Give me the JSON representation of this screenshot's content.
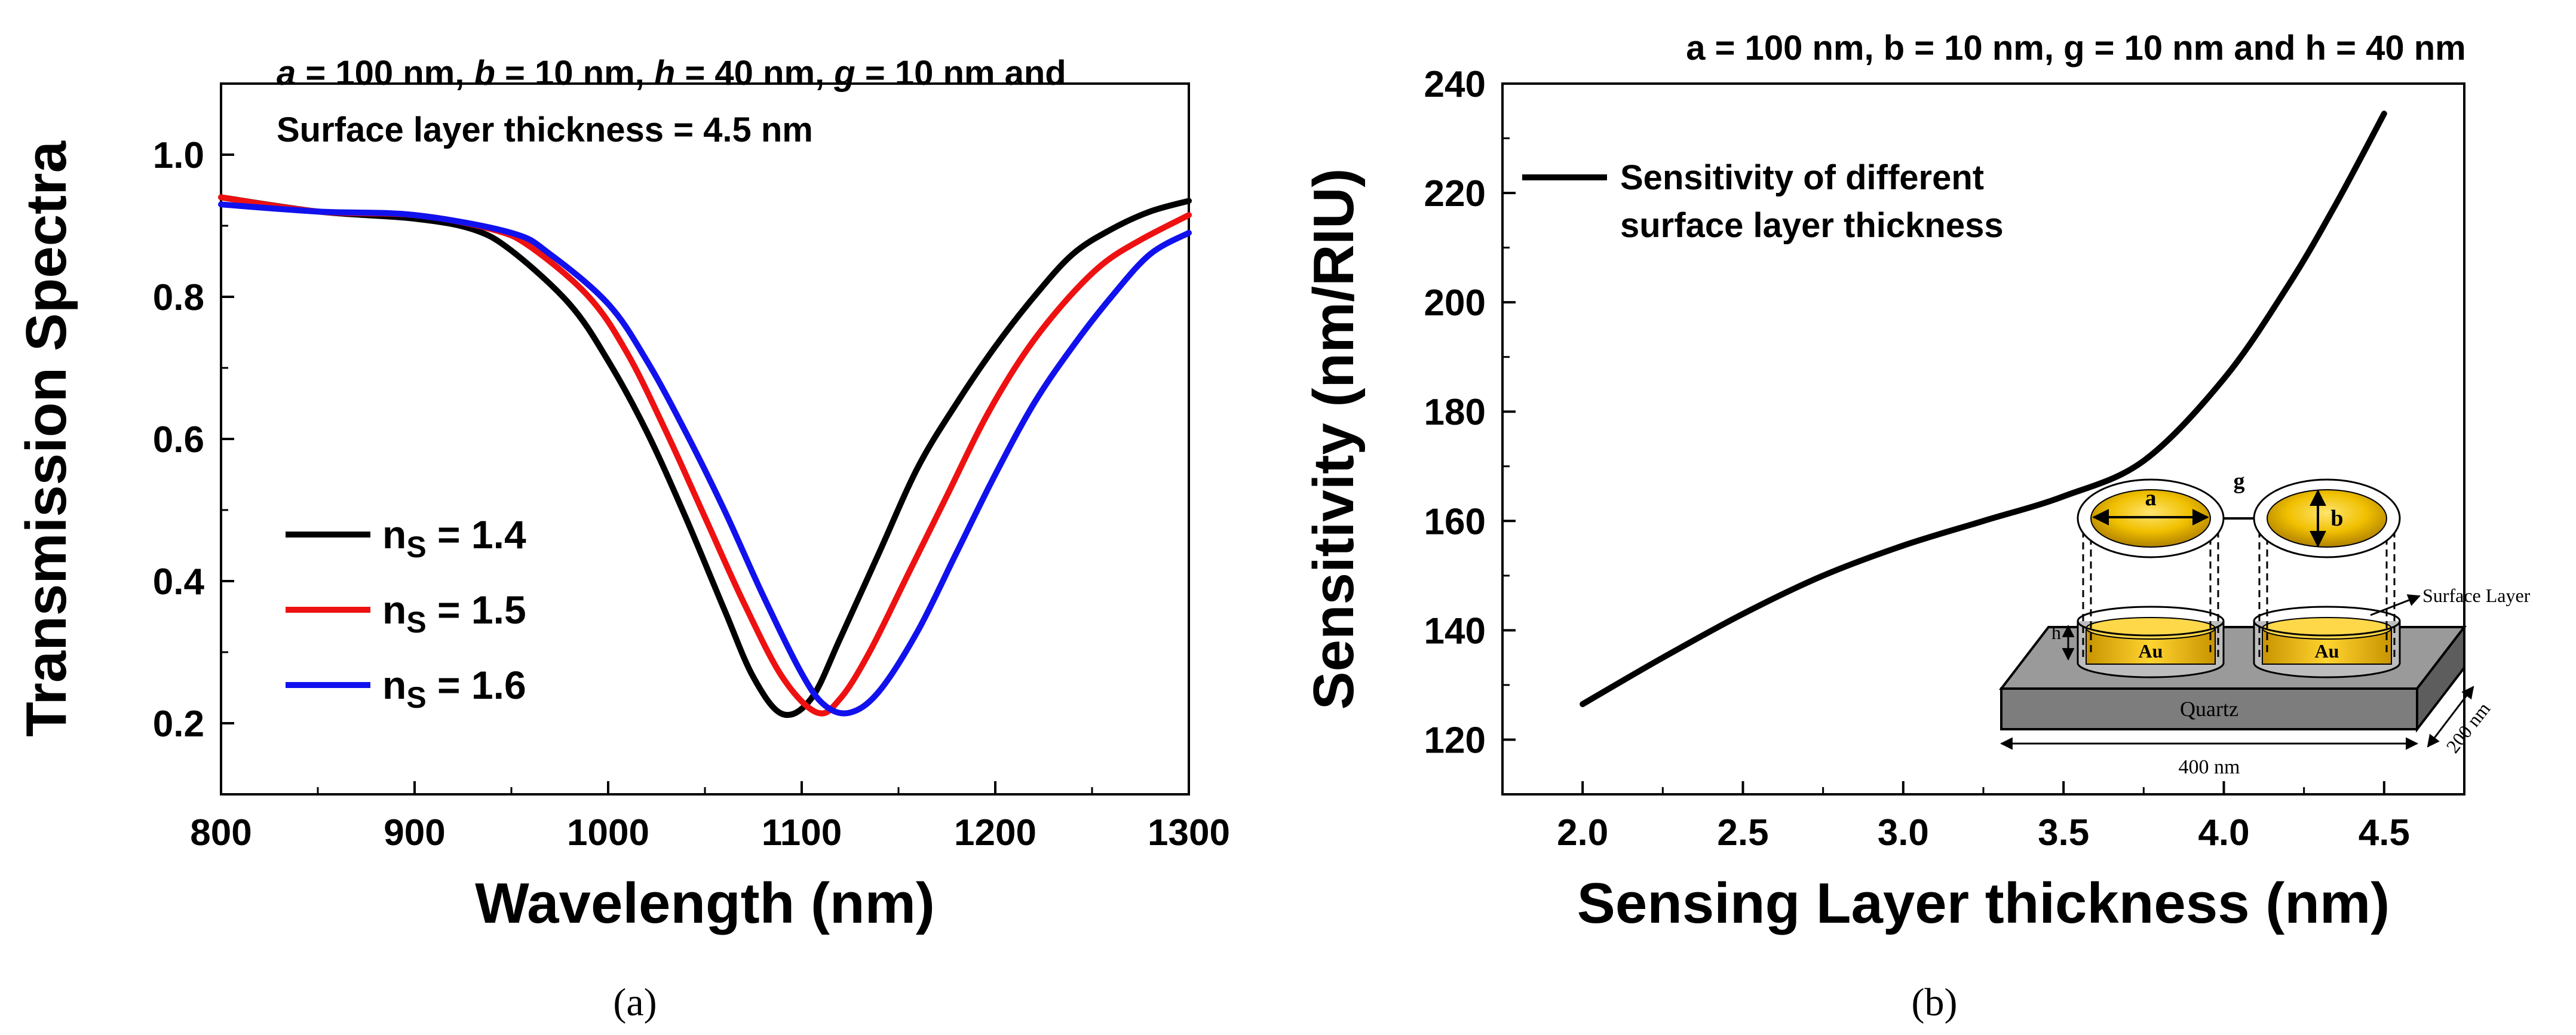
{
  "chart_data": [
    {
      "panel": "(a)",
      "type": "line",
      "xlabel": "Wavelength (nm)",
      "ylabel": "Transmission Spectra",
      "xlim": [
        800,
        1300
      ],
      "ylim": [
        0.1,
        1.1
      ],
      "xticks": [
        "800",
        "900",
        "1000",
        "1100",
        "1200",
        "1300"
      ],
      "yticks": [
        "0.2",
        "0.4",
        "0.6",
        "0.8",
        "1.0"
      ],
      "annotation": {
        "line1_parts": [
          {
            "t": "a",
            "i": true
          },
          {
            "t": " = 100 nm, ",
            "i": false
          },
          {
            "t": "b",
            "i": true
          },
          {
            "t": " = 10 nm, ",
            "i": false
          },
          {
            "t": "h",
            "i": true
          },
          {
            "t": " = 40 nm, ",
            "i": false
          },
          {
            "t": "g",
            "i": true
          },
          {
            "t": " = 10 nm and",
            "i": false
          }
        ],
        "line2": "Surface layer thickness = 4.5 nm"
      },
      "legend": {
        "position": "middle-left"
      },
      "series": [
        {
          "name": "n_S = 1.4",
          "label_main": "n",
          "label_sub": "S",
          "label_value": " = 1.4",
          "color": "#000000",
          "x": [
            800,
            850,
            900,
            930,
            950,
            980,
            1000,
            1020,
            1040,
            1060,
            1075,
            1090,
            1105,
            1120,
            1140,
            1160,
            1180,
            1200,
            1220,
            1240,
            1260,
            1280,
            1300
          ],
          "y": [
            0.94,
            0.92,
            0.91,
            0.895,
            0.865,
            0.79,
            0.71,
            0.61,
            0.49,
            0.36,
            0.265,
            0.213,
            0.235,
            0.32,
            0.44,
            0.56,
            0.65,
            0.73,
            0.8,
            0.86,
            0.895,
            0.92,
            0.935
          ]
        },
        {
          "name": "n_S = 1.5",
          "label_main": "n",
          "label_sub": "S",
          "label_value": " = 1.5",
          "color": "#ee1111",
          "x": [
            800,
            850,
            900,
            940,
            960,
            990,
            1010,
            1030,
            1050,
            1070,
            1090,
            1108,
            1120,
            1135,
            1155,
            1175,
            1195,
            1215,
            1235,
            1255,
            1275,
            1300
          ],
          "y": [
            0.94,
            0.92,
            0.915,
            0.895,
            0.87,
            0.8,
            0.72,
            0.61,
            0.49,
            0.37,
            0.265,
            0.215,
            0.235,
            0.3,
            0.41,
            0.52,
            0.63,
            0.72,
            0.79,
            0.845,
            0.88,
            0.915
          ]
        },
        {
          "name": "n_S = 1.6",
          "label_main": "n",
          "label_sub": "S",
          "label_value": " = 1.6",
          "color": "#1111ee",
          "x": [
            800,
            850,
            900,
            950,
            970,
            1000,
            1020,
            1040,
            1060,
            1080,
            1100,
            1112,
            1125,
            1140,
            1160,
            1180,
            1200,
            1220,
            1240,
            1260,
            1280,
            1300
          ],
          "y": [
            0.93,
            0.92,
            0.915,
            0.89,
            0.86,
            0.79,
            0.71,
            0.61,
            0.5,
            0.38,
            0.27,
            0.225,
            0.215,
            0.245,
            0.33,
            0.44,
            0.55,
            0.65,
            0.73,
            0.8,
            0.86,
            0.89
          ]
        }
      ]
    },
    {
      "panel": "(b)",
      "type": "line",
      "title": "a = 100 nm, b = 10 nm, g = 10 nm and h = 40 nm",
      "xlabel": "Sensing Layer thickness (nm)",
      "ylabel": "Sensitivity (nm/RIU)",
      "xlim": [
        1.75,
        4.75
      ],
      "ylim": [
        110,
        240
      ],
      "xticks": [
        "2.0",
        "2.5",
        "3.0",
        "3.5",
        "4.0",
        "4.5"
      ],
      "yticks": [
        "120",
        "140",
        "160",
        "180",
        "200",
        "220",
        "240"
      ],
      "legend": {
        "position": "top-left",
        "line1": "Sensitivity of different",
        "line2": "surface layer thickness"
      },
      "series": [
        {
          "name": "Sensitivity of different surface layer thickness",
          "color": "#000000",
          "x": [
            2.0,
            2.25,
            2.5,
            2.75,
            3.0,
            3.25,
            3.5,
            3.75,
            4.0,
            4.2,
            4.35,
            4.5
          ],
          "y": [
            126.5,
            135,
            143,
            150,
            155.5,
            160,
            164.5,
            171,
            186,
            203,
            218,
            234.5
          ]
        }
      ],
      "inset": {
        "labels": {
          "a": "a",
          "b": "b",
          "g": "g",
          "h": "h",
          "au": "Au",
          "surface": "Surface Layer",
          "quartz": "Quartz",
          "length": "400 nm",
          "width": "200 nm"
        }
      }
    }
  ],
  "captions": {
    "a": "(a)",
    "b": "(b)"
  }
}
